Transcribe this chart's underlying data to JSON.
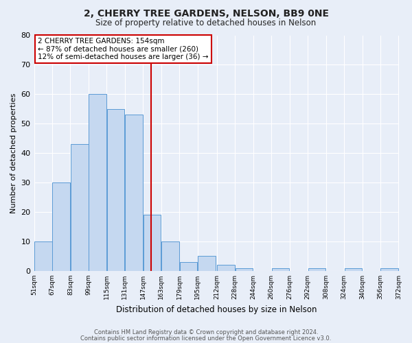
{
  "title": "2, CHERRY TREE GARDENS, NELSON, BB9 0NE",
  "subtitle": "Size of property relative to detached houses in Nelson",
  "xlabel": "Distribution of detached houses by size in Nelson",
  "ylabel": "Number of detached properties",
  "bar_color": "#c5d8f0",
  "bar_edge_color": "#5b9bd5",
  "background_color": "#e8eef8",
  "fig_background_color": "#e8eef8",
  "grid_color": "#ffffff",
  "bin_left_edges": [
    51,
    67,
    83,
    99,
    115,
    131,
    147,
    163,
    179,
    195,
    212,
    228,
    244,
    260,
    276,
    292,
    308,
    324,
    340,
    356
  ],
  "bin_width": 16,
  "bin_labels": [
    "51sqm",
    "67sqm",
    "83sqm",
    "99sqm",
    "115sqm",
    "131sqm",
    "147sqm",
    "163sqm",
    "179sqm",
    "195sqm",
    "212sqm",
    "228sqm",
    "244sqm",
    "260sqm",
    "276sqm",
    "292sqm",
    "308sqm",
    "324sqm",
    "340sqm",
    "356sqm",
    "372sqm"
  ],
  "bar_heights": [
    10,
    30,
    43,
    60,
    55,
    53,
    19,
    10,
    3,
    5,
    2,
    1,
    0,
    1,
    0,
    1,
    0,
    1,
    0,
    1
  ],
  "vline_x": 154,
  "vline_color": "#cc0000",
  "annotation_line1": "2 CHERRY TREE GARDENS: 154sqm",
  "annotation_line2": "← 87% of detached houses are smaller (260)",
  "annotation_line3": "12% of semi-detached houses are larger (36) →",
  "ylim": [
    0,
    80
  ],
  "yticks": [
    0,
    10,
    20,
    30,
    40,
    50,
    60,
    70,
    80
  ],
  "footer_line1": "Contains HM Land Registry data © Crown copyright and database right 2024.",
  "footer_line2": "Contains public sector information licensed under the Open Government Licence v3.0."
}
